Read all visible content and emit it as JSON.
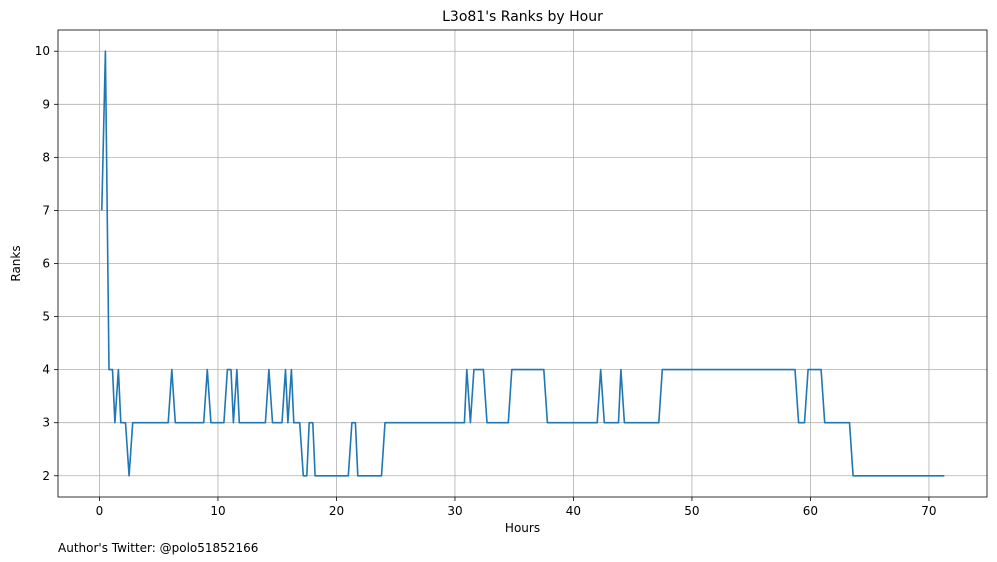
{
  "chart_data": {
    "type": "line",
    "title": "L3o81's Ranks by Hour",
    "xlabel": "Hours",
    "ylabel": "Ranks",
    "xlim": [
      -3.5,
      74.9
    ],
    "ylim": [
      1.6,
      10.4
    ],
    "xticks": [
      0,
      10,
      20,
      30,
      40,
      50,
      60,
      70
    ],
    "yticks": [
      2,
      3,
      4,
      5,
      6,
      7,
      8,
      9,
      10
    ],
    "grid": true,
    "series": [
      {
        "color": "#1f77b4",
        "points": [
          [
            0.2,
            7
          ],
          [
            0.5,
            10
          ],
          [
            0.8,
            4
          ],
          [
            1.1,
            4
          ],
          [
            1.3,
            3
          ],
          [
            1.6,
            4
          ],
          [
            1.8,
            3
          ],
          [
            2.2,
            3
          ],
          [
            2.5,
            2
          ],
          [
            2.8,
            3
          ],
          [
            5.8,
            3
          ],
          [
            6.1,
            4
          ],
          [
            6.4,
            3
          ],
          [
            8.8,
            3
          ],
          [
            9.1,
            4
          ],
          [
            9.4,
            3
          ],
          [
            10.5,
            3
          ],
          [
            10.8,
            4
          ],
          [
            11.1,
            4
          ],
          [
            11.3,
            3
          ],
          [
            11.6,
            4
          ],
          [
            11.8,
            3
          ],
          [
            14.0,
            3
          ],
          [
            14.3,
            4
          ],
          [
            14.6,
            3
          ],
          [
            15.4,
            3
          ],
          [
            15.7,
            4
          ],
          [
            15.9,
            3
          ],
          [
            16.2,
            4
          ],
          [
            16.4,
            3
          ],
          [
            16.9,
            3
          ],
          [
            17.2,
            2
          ],
          [
            17.5,
            2
          ],
          [
            17.7,
            3
          ],
          [
            18.0,
            3
          ],
          [
            18.2,
            2
          ],
          [
            21.0,
            2
          ],
          [
            21.3,
            3
          ],
          [
            21.6,
            3
          ],
          [
            21.8,
            2
          ],
          [
            23.8,
            2
          ],
          [
            24.1,
            3
          ],
          [
            30.8,
            3
          ],
          [
            31.0,
            4
          ],
          [
            31.3,
            3
          ],
          [
            31.6,
            4
          ],
          [
            32.4,
            4
          ],
          [
            32.7,
            3
          ],
          [
            34.5,
            3
          ],
          [
            34.8,
            4
          ],
          [
            37.5,
            4
          ],
          [
            37.8,
            3
          ],
          [
            42.0,
            3
          ],
          [
            42.3,
            4
          ],
          [
            42.6,
            3
          ],
          [
            43.8,
            3
          ],
          [
            44.0,
            4
          ],
          [
            44.3,
            3
          ],
          [
            47.2,
            3
          ],
          [
            47.5,
            4
          ],
          [
            58.7,
            4
          ],
          [
            59.0,
            3
          ],
          [
            59.5,
            3
          ],
          [
            59.8,
            4
          ],
          [
            60.9,
            4
          ],
          [
            61.2,
            3
          ],
          [
            63.3,
            3
          ],
          [
            63.6,
            2
          ],
          [
            71.3,
            2
          ]
        ]
      }
    ],
    "annotation": "Author's Twitter: @polo51852166"
  }
}
